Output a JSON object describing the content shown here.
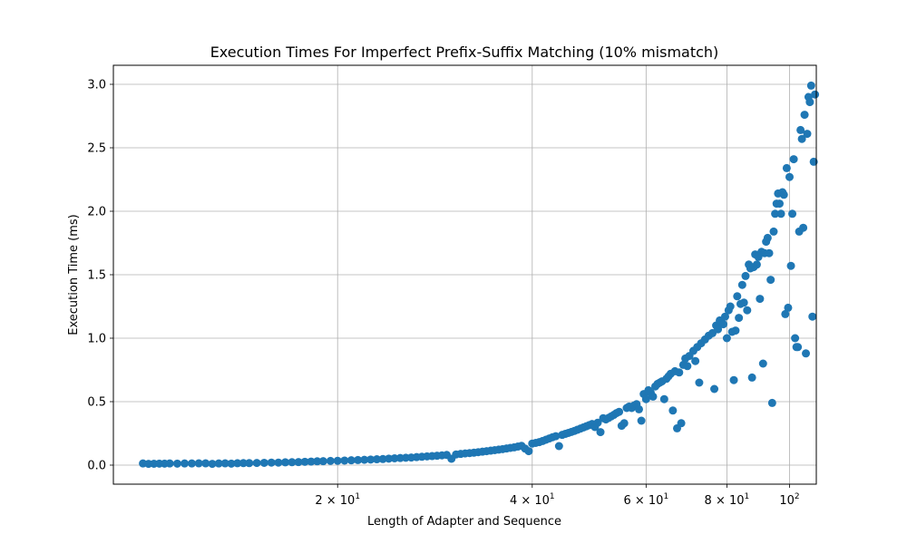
{
  "chart_data": {
    "type": "scatter",
    "title": "Execution Times For Imperfect Prefix-Suffix Matching (10% mismatch)",
    "xlabel": "Length of Adapter and Sequence",
    "ylabel": "Execution Time (ms)",
    "x_scale": "log",
    "xlim": [
      9.0,
      110.0
    ],
    "ylim": [
      -0.15,
      3.15
    ],
    "grid": true,
    "marker_color": "#1f77b4",
    "x_ticks": [
      {
        "value": 20,
        "label": "2 × 10",
        "exp": "1"
      },
      {
        "value": 40,
        "label": "4 × 10",
        "exp": "1"
      },
      {
        "value": 60,
        "label": "6 × 10",
        "exp": "1"
      },
      {
        "value": 80,
        "label": "8 × 10",
        "exp": "1"
      },
      {
        "value": 100,
        "label": "10",
        "exp": "2"
      }
    ],
    "y_ticks": [
      {
        "value": 0.0,
        "label": "0.0"
      },
      {
        "value": 0.5,
        "label": "0.5"
      },
      {
        "value": 1.0,
        "label": "1.0"
      },
      {
        "value": 1.5,
        "label": "1.5"
      },
      {
        "value": 2.0,
        "label": "2.0"
      },
      {
        "value": 2.5,
        "label": "2.5"
      },
      {
        "value": 3.0,
        "label": "3.0"
      }
    ],
    "points": [
      [
        10.0,
        0.013
      ],
      [
        10.2,
        0.01
      ],
      [
        10.4,
        0.011
      ],
      [
        10.6,
        0.012
      ],
      [
        10.8,
        0.012
      ],
      [
        11.0,
        0.013
      ],
      [
        11.3,
        0.012
      ],
      [
        11.6,
        0.013
      ],
      [
        11.9,
        0.013
      ],
      [
        12.2,
        0.014
      ],
      [
        12.5,
        0.014
      ],
      [
        12.8,
        0.01
      ],
      [
        13.1,
        0.013
      ],
      [
        13.4,
        0.014
      ],
      [
        13.7,
        0.012
      ],
      [
        14.0,
        0.015
      ],
      [
        14.3,
        0.016
      ],
      [
        14.6,
        0.016
      ],
      [
        15.0,
        0.017
      ],
      [
        15.4,
        0.018
      ],
      [
        15.8,
        0.02
      ],
      [
        16.2,
        0.02
      ],
      [
        16.6,
        0.022
      ],
      [
        17.0,
        0.023
      ],
      [
        17.4,
        0.024
      ],
      [
        17.8,
        0.026
      ],
      [
        18.2,
        0.028
      ],
      [
        18.6,
        0.03
      ],
      [
        19.0,
        0.031
      ],
      [
        19.5,
        0.033
      ],
      [
        20.0,
        0.034
      ],
      [
        20.5,
        0.036
      ],
      [
        21.0,
        0.038
      ],
      [
        21.5,
        0.04
      ],
      [
        22.0,
        0.042
      ],
      [
        22.5,
        0.044
      ],
      [
        23.0,
        0.046
      ],
      [
        23.5,
        0.048
      ],
      [
        24.0,
        0.051
      ],
      [
        24.5,
        0.054
      ],
      [
        25.0,
        0.056
      ],
      [
        25.5,
        0.058
      ],
      [
        26.0,
        0.06
      ],
      [
        26.5,
        0.063
      ],
      [
        27.0,
        0.066
      ],
      [
        27.5,
        0.069
      ],
      [
        28.0,
        0.071
      ],
      [
        28.5,
        0.074
      ],
      [
        29.0,
        0.077
      ],
      [
        29.5,
        0.08
      ],
      [
        30.0,
        0.05
      ],
      [
        30.5,
        0.084
      ],
      [
        31.0,
        0.088
      ],
      [
        31.5,
        0.092
      ],
      [
        32.0,
        0.095
      ],
      [
        32.5,
        0.098
      ],
      [
        33.0,
        0.102
      ],
      [
        33.5,
        0.106
      ],
      [
        34.0,
        0.11
      ],
      [
        34.5,
        0.114
      ],
      [
        35.0,
        0.118
      ],
      [
        35.5,
        0.122
      ],
      [
        36.0,
        0.126
      ],
      [
        36.5,
        0.131
      ],
      [
        37.0,
        0.136
      ],
      [
        37.5,
        0.14
      ],
      [
        38.0,
        0.146
      ],
      [
        38.5,
        0.152
      ],
      [
        39.0,
        0.13
      ],
      [
        39.5,
        0.11
      ],
      [
        40.0,
        0.17
      ],
      [
        40.5,
        0.175
      ],
      [
        41.0,
        0.181
      ],
      [
        41.5,
        0.19
      ],
      [
        42.0,
        0.2
      ],
      [
        42.5,
        0.21
      ],
      [
        43.0,
        0.22
      ],
      [
        43.5,
        0.228
      ],
      [
        44.0,
        0.15
      ],
      [
        44.5,
        0.238
      ],
      [
        45.0,
        0.246
      ],
      [
        45.5,
        0.254
      ],
      [
        46.0,
        0.262
      ],
      [
        46.5,
        0.27
      ],
      [
        47.0,
        0.279
      ],
      [
        47.5,
        0.288
      ],
      [
        48.0,
        0.297
      ],
      [
        48.5,
        0.306
      ],
      [
        49.0,
        0.315
      ],
      [
        49.5,
        0.324
      ],
      [
        50.0,
        0.3
      ],
      [
        50.5,
        0.334
      ],
      [
        51.0,
        0.26
      ],
      [
        51.5,
        0.37
      ],
      [
        52.0,
        0.36
      ],
      [
        52.5,
        0.372
      ],
      [
        53.0,
        0.384
      ],
      [
        53.5,
        0.396
      ],
      [
        54.0,
        0.41
      ],
      [
        54.5,
        0.42
      ],
      [
        55.0,
        0.31
      ],
      [
        55.5,
        0.33
      ],
      [
        56.0,
        0.45
      ],
      [
        56.5,
        0.462
      ],
      [
        57.0,
        0.45
      ],
      [
        57.5,
        0.47
      ],
      [
        58.0,
        0.48
      ],
      [
        58.5,
        0.44
      ],
      [
        59.0,
        0.35
      ],
      [
        59.5,
        0.56
      ],
      [
        60.0,
        0.52
      ],
      [
        60.5,
        0.59
      ],
      [
        61.0,
        0.57
      ],
      [
        61.5,
        0.54
      ],
      [
        62.0,
        0.62
      ],
      [
        62.5,
        0.64
      ],
      [
        63.0,
        0.65
      ],
      [
        63.5,
        0.66
      ],
      [
        64.0,
        0.52
      ],
      [
        64.5,
        0.68
      ],
      [
        65.0,
        0.7
      ],
      [
        65.5,
        0.72
      ],
      [
        66.0,
        0.43
      ],
      [
        66.5,
        0.74
      ],
      [
        67.0,
        0.29
      ],
      [
        67.5,
        0.73
      ],
      [
        68.0,
        0.33
      ],
      [
        68.5,
        0.79
      ],
      [
        69.0,
        0.84
      ],
      [
        69.5,
        0.78
      ],
      [
        70.0,
        0.86
      ],
      [
        71.0,
        0.9
      ],
      [
        71.5,
        0.82
      ],
      [
        72.0,
        0.93
      ],
      [
        72.5,
        0.65
      ],
      [
        73.0,
        0.96
      ],
      [
        74.0,
        0.99
      ],
      [
        75.0,
        1.02
      ],
      [
        76.0,
        1.04
      ],
      [
        76.5,
        0.6
      ],
      [
        77.0,
        1.1
      ],
      [
        77.5,
        1.07
      ],
      [
        78.0,
        1.14
      ],
      [
        79.0,
        1.11
      ],
      [
        79.5,
        1.17
      ],
      [
        80.0,
        1.0
      ],
      [
        80.5,
        1.22
      ],
      [
        81.0,
        1.25
      ],
      [
        81.5,
        1.05
      ],
      [
        82.0,
        0.67
      ],
      [
        82.5,
        1.06
      ],
      [
        83.0,
        1.33
      ],
      [
        83.5,
        1.16
      ],
      [
        84.0,
        1.27
      ],
      [
        84.5,
        1.42
      ],
      [
        85.0,
        1.28
      ],
      [
        85.5,
        1.49
      ],
      [
        86.0,
        1.22
      ],
      [
        86.5,
        1.58
      ],
      [
        87.0,
        1.55
      ],
      [
        87.5,
        0.69
      ],
      [
        88.0,
        1.56
      ],
      [
        88.5,
        1.66
      ],
      [
        89.0,
        1.58
      ],
      [
        89.5,
        1.64
      ],
      [
        90.0,
        1.31
      ],
      [
        90.5,
        1.68
      ],
      [
        91.0,
        0.8
      ],
      [
        91.5,
        1.67
      ],
      [
        92.0,
        1.76
      ],
      [
        92.5,
        1.79
      ],
      [
        93.0,
        1.67
      ],
      [
        93.5,
        1.46
      ],
      [
        94.0,
        0.49
      ],
      [
        94.5,
        1.84
      ],
      [
        95.0,
        1.98
      ],
      [
        95.5,
        2.06
      ],
      [
        96.0,
        2.14
      ],
      [
        96.5,
        2.06
      ],
      [
        97.0,
        1.98
      ],
      [
        97.5,
        2.15
      ],
      [
        98.0,
        2.13
      ],
      [
        98.5,
        1.19
      ],
      [
        99.0,
        2.34
      ],
      [
        99.5,
        1.24
      ],
      [
        100.0,
        2.27
      ],
      [
        100.5,
        1.57
      ],
      [
        101.0,
        1.98
      ],
      [
        101.5,
        2.41
      ],
      [
        102.0,
        1.0
      ],
      [
        102.5,
        0.93
      ],
      [
        103.0,
        0.93
      ],
      [
        103.5,
        1.84
      ],
      [
        104.0,
        2.64
      ],
      [
        104.5,
        2.57
      ],
      [
        105.0,
        1.87
      ],
      [
        105.5,
        2.76
      ],
      [
        106.0,
        0.88
      ],
      [
        106.5,
        2.61
      ],
      [
        107.0,
        2.9
      ],
      [
        107.5,
        2.86
      ],
      [
        108.0,
        2.99
      ],
      [
        108.5,
        1.17
      ],
      [
        109.0,
        2.39
      ],
      [
        109.5,
        2.92
      ]
    ]
  }
}
